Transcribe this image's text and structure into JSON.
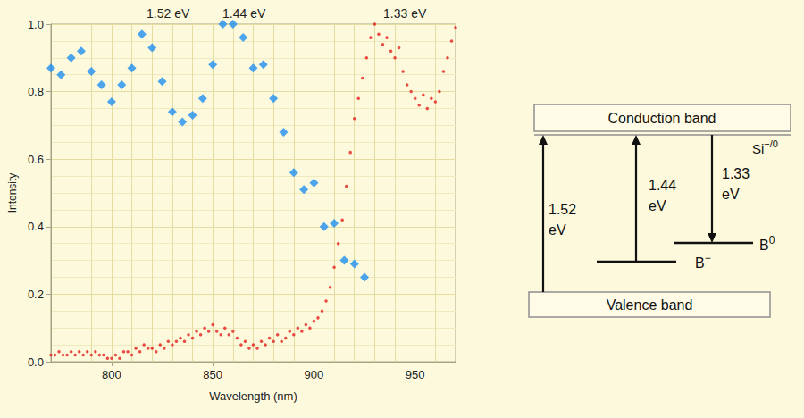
{
  "chart_data": {
    "type": "scatter",
    "x_label": "Wavelength (nm)",
    "y_label": "Intensity",
    "annotations": [
      "1.52 eV",
      "1.44 eV",
      "1.33 eV"
    ],
    "xlim": [
      770,
      970
    ],
    "xticks": [
      800,
      850,
      900,
      950
    ],
    "ylim": [
      0,
      1
    ],
    "yticks": [
      {
        "value": 0,
        "label": "0.0"
      },
      0.2,
      0.4,
      0.6,
      0.8,
      {
        "value": 1,
        "label": "1.0"
      }
    ],
    "grid": true,
    "series": [
      {
        "type": "scatter",
        "marker": "diamond",
        "color": "#1f8ef0",
        "x": [
          770,
          775,
          780,
          785,
          790,
          795,
          800,
          805,
          810,
          815,
          820,
          825,
          830,
          835,
          840,
          845,
          850,
          855,
          860,
          865,
          870,
          875,
          880,
          885,
          890,
          895,
          900,
          905,
          910,
          915,
          920,
          925
        ],
        "values": [
          0.87,
          0.85,
          0.9,
          0.92,
          0.86,
          0.82,
          0.77,
          0.82,
          0.87,
          0.97,
          0.93,
          0.83,
          0.74,
          0.71,
          0.73,
          0.78,
          0.88,
          1.0,
          1.0,
          0.96,
          0.87,
          0.88,
          0.78,
          0.68,
          0.56,
          0.51,
          0.53,
          0.4,
          0.41,
          0.3,
          0.29,
          0.25
        ]
      },
      {
        "type": "scatter",
        "marker": "circle",
        "color": "#e3201b",
        "x": [
          770,
          772,
          774,
          776,
          778,
          780,
          782,
          784,
          786,
          788,
          790,
          792,
          794,
          796,
          798,
          800,
          802,
          804,
          806,
          808,
          810,
          812,
          814,
          816,
          818,
          820,
          822,
          824,
          826,
          828,
          830,
          832,
          834,
          836,
          838,
          840,
          842,
          844,
          846,
          848,
          850,
          852,
          854,
          856,
          858,
          860,
          862,
          864,
          866,
          868,
          870,
          872,
          874,
          876,
          878,
          880,
          882,
          884,
          886,
          888,
          890,
          892,
          894,
          896,
          898,
          900,
          902,
          904,
          906,
          908,
          910,
          912,
          914,
          916,
          918,
          920,
          922,
          924,
          926,
          928,
          930,
          932,
          934,
          936,
          938,
          940,
          942,
          944,
          946,
          948,
          950,
          952,
          954,
          956,
          958,
          960,
          962,
          964,
          966,
          968,
          970
        ],
        "values": [
          0.02,
          0.02,
          0.03,
          0.02,
          0.02,
          0.03,
          0.02,
          0.03,
          0.02,
          0.03,
          0.02,
          0.03,
          0.02,
          0.02,
          0.01,
          0.01,
          0.02,
          0.01,
          0.03,
          0.03,
          0.02,
          0.04,
          0.03,
          0.05,
          0.04,
          0.04,
          0.03,
          0.05,
          0.04,
          0.06,
          0.05,
          0.06,
          0.07,
          0.06,
          0.08,
          0.07,
          0.09,
          0.08,
          0.1,
          0.09,
          0.11,
          0.09,
          0.08,
          0.1,
          0.08,
          0.09,
          0.07,
          0.05,
          0.06,
          0.04,
          0.05,
          0.04,
          0.06,
          0.05,
          0.07,
          0.06,
          0.08,
          0.06,
          0.07,
          0.09,
          0.08,
          0.1,
          0.09,
          0.11,
          0.1,
          0.12,
          0.13,
          0.15,
          0.18,
          0.22,
          0.28,
          0.35,
          0.42,
          0.52,
          0.62,
          0.72,
          0.78,
          0.84,
          0.9,
          0.96,
          1.0,
          0.97,
          0.94,
          0.96,
          0.92,
          0.9,
          0.93,
          0.86,
          0.82,
          0.8,
          0.78,
          0.76,
          0.79,
          0.75,
          0.78,
          0.77,
          0.8,
          0.86,
          0.9,
          0.95,
          0.99
        ]
      }
    ]
  },
  "diagram": {
    "conduction_band": "Conduction band",
    "valence_band": "Valence band",
    "defect_level": {
      "label": "Si",
      "superscript": "−/0"
    },
    "levels": [
      {
        "label": "B",
        "superscript": "−"
      },
      {
        "label": "B",
        "superscript": "0"
      }
    ],
    "transitions": [
      {
        "label": "1.52 eV",
        "direction": "up"
      },
      {
        "label": "1.44 eV",
        "direction": "up"
      },
      {
        "label": "1.33 eV",
        "direction": "down"
      }
    ]
  }
}
